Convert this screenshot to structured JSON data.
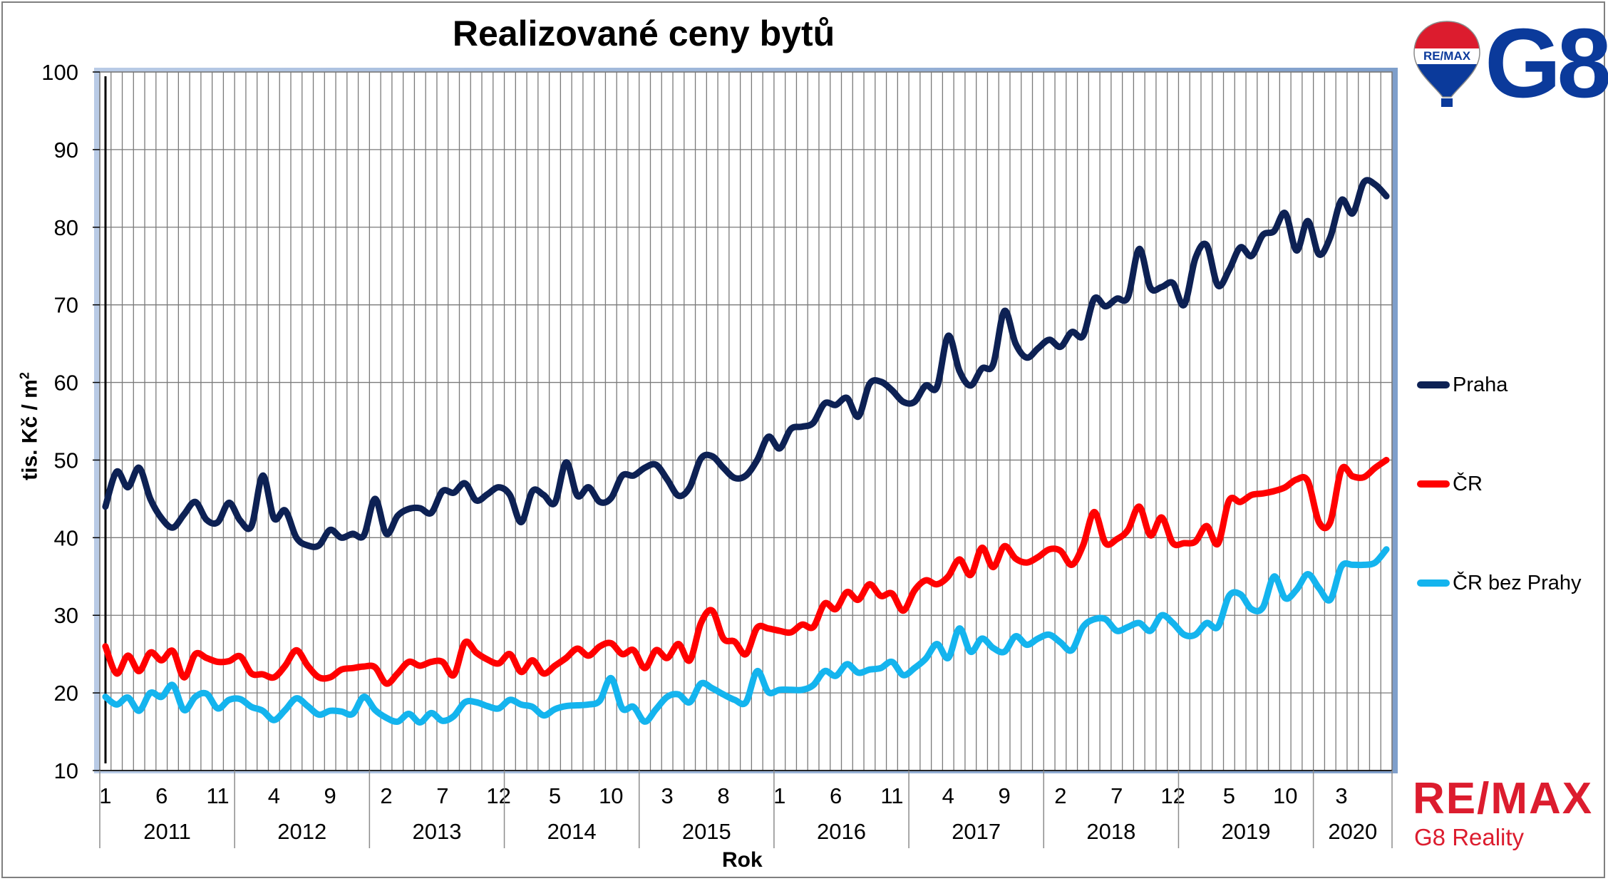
{
  "chart_data": {
    "type": "line",
    "title": "Realizované ceny bytů",
    "ylabel": "tis. Kč / m",
    "ylabel_sup": "2",
    "xlabel": "Rok",
    "ylim": [
      10,
      100
    ],
    "yticks": [
      10,
      20,
      30,
      40,
      50,
      60,
      70,
      80,
      90,
      100
    ],
    "grid": true,
    "legend": "right",
    "month_tick_labels": [
      "1",
      "6",
      "11",
      "4",
      "9",
      "2",
      "7",
      "12",
      "5",
      "10",
      "3",
      "8",
      "1",
      "6",
      "11",
      "4",
      "9",
      "2",
      "7",
      "12",
      "5",
      "10",
      "3"
    ],
    "years": [
      "2011",
      "2012",
      "2013",
      "2014",
      "2015",
      "2016",
      "2017",
      "2018",
      "2019",
      "2020"
    ],
    "series": [
      {
        "name": "Praha",
        "color": "#0d2154",
        "values": [
          44,
          48.5,
          46.5,
          49,
          45,
          42.5,
          41.3,
          43,
          44.6,
          42.3,
          42,
          44.5,
          42.2,
          41.5,
          48,
          42.5,
          43.5,
          40,
          39,
          39,
          41,
          40,
          40.5,
          40.3,
          45,
          40.5,
          42.8,
          43.7,
          43.8,
          43.2,
          46,
          45.8,
          47,
          44.8,
          45.6,
          46.5,
          45.5,
          42,
          46,
          45.5,
          44.5,
          49.7,
          45.4,
          46.5,
          44.6,
          45.1,
          48,
          48,
          49,
          49.4,
          47.5,
          45.4,
          46.5,
          50.2,
          50.5,
          49,
          47.7,
          48,
          50,
          53,
          51.5,
          54,
          54.3,
          54.8,
          57.3,
          57.1,
          58,
          55.6,
          59.8,
          60.1,
          59,
          57.5,
          57.5,
          59.6,
          59.4,
          66,
          61.5,
          59.6,
          61.8,
          62.3,
          69.2,
          65,
          63.2,
          64.4,
          65.5,
          64.6,
          66.5,
          66,
          70.8,
          69.8,
          70.8,
          71,
          77.2,
          72.2,
          72.3,
          72.8,
          70,
          76,
          77.7,
          72.5,
          74.5,
          77.4,
          76.3,
          79,
          79.5,
          81.8,
          77,
          80.8,
          76.5,
          78.7,
          83.5,
          81.8,
          85.8,
          85.5,
          84
        ]
      },
      {
        "name": "ČR",
        "color": "#ff0000",
        "values": [
          26,
          22.5,
          24.8,
          22.8,
          25.2,
          24.2,
          25.4,
          22,
          25,
          24.5,
          24,
          24.1,
          24.7,
          22.5,
          22.4,
          22,
          23.5,
          25.5,
          23.5,
          22,
          22,
          23,
          23.2,
          23.4,
          23.3,
          21.2,
          22.5,
          24,
          23.5,
          24,
          24,
          22.3,
          26.5,
          25.2,
          24.3,
          23.8,
          25,
          22.7,
          24.2,
          22.5,
          23.5,
          24.5,
          25.7,
          24.8,
          26,
          26.4,
          25,
          25.5,
          23.2,
          25.5,
          24.5,
          26.3,
          24.2,
          29,
          30.6,
          27,
          26.6,
          25,
          28.4,
          28.3,
          28,
          27.8,
          28.8,
          28.5,
          31.5,
          30.8,
          33,
          32,
          34,
          32.5,
          32.8,
          30.6,
          33.2,
          34.5,
          34,
          35,
          37.2,
          35.2,
          38.7,
          36.2,
          38.9,
          37.3,
          36.8,
          37.5,
          38.5,
          38.3,
          36.5,
          39,
          43.3,
          39.3,
          39.8,
          41,
          44,
          40.3,
          42.6,
          39.3,
          39.3,
          39.5,
          41.5,
          39.2,
          44.8,
          44.6,
          45.5,
          45.7,
          46,
          46.5,
          47.5,
          47.3,
          42,
          42,
          48.8,
          47.9,
          47.8,
          49,
          50
        ]
      },
      {
        "name": "ČR bez Prahy",
        "color": "#14b4ee",
        "values": [
          19.5,
          18.5,
          19.4,
          17.7,
          20,
          19.5,
          21,
          17.8,
          19.5,
          19.9,
          18,
          19.1,
          19.2,
          18.2,
          17.7,
          16.5,
          17.8,
          19.3,
          18.3,
          17.2,
          17.7,
          17.6,
          17.3,
          19.5,
          17.8,
          16.8,
          16.3,
          17.3,
          16.2,
          17.4,
          16.4,
          17,
          18.8,
          18.8,
          18.3,
          18,
          19.1,
          18.5,
          18.2,
          17.1,
          17.9,
          18.3,
          18.4,
          18.5,
          19,
          21.9,
          18,
          18.2,
          16.3,
          17.9,
          19.5,
          19.8,
          18.8,
          21.2,
          20.6,
          19.8,
          19.1,
          18.8,
          22.8,
          20.1,
          20.4,
          20.4,
          20.4,
          21,
          22.8,
          22.2,
          23.7,
          22.6,
          23,
          23.2,
          24,
          22.3,
          23.2,
          24.4,
          26.3,
          24.5,
          28.3,
          25.3,
          27,
          25.8,
          25.3,
          27.3,
          26.2,
          27,
          27.5,
          26.5,
          25.5,
          28.5,
          29.5,
          29.5,
          28,
          28.5,
          29,
          28,
          30,
          29,
          27.5,
          27.5,
          29,
          28.5,
          32.5,
          32.7,
          30.8,
          31,
          35,
          32.2,
          33.3,
          35.3,
          33.5,
          32,
          36.3,
          36.5,
          36.5,
          36.8,
          38.5
        ]
      }
    ]
  },
  "branding": {
    "balloon_text": "RE/MAX",
    "g8": "G8",
    "remax": "RE/MAX",
    "reality": "G8 Reality"
  }
}
